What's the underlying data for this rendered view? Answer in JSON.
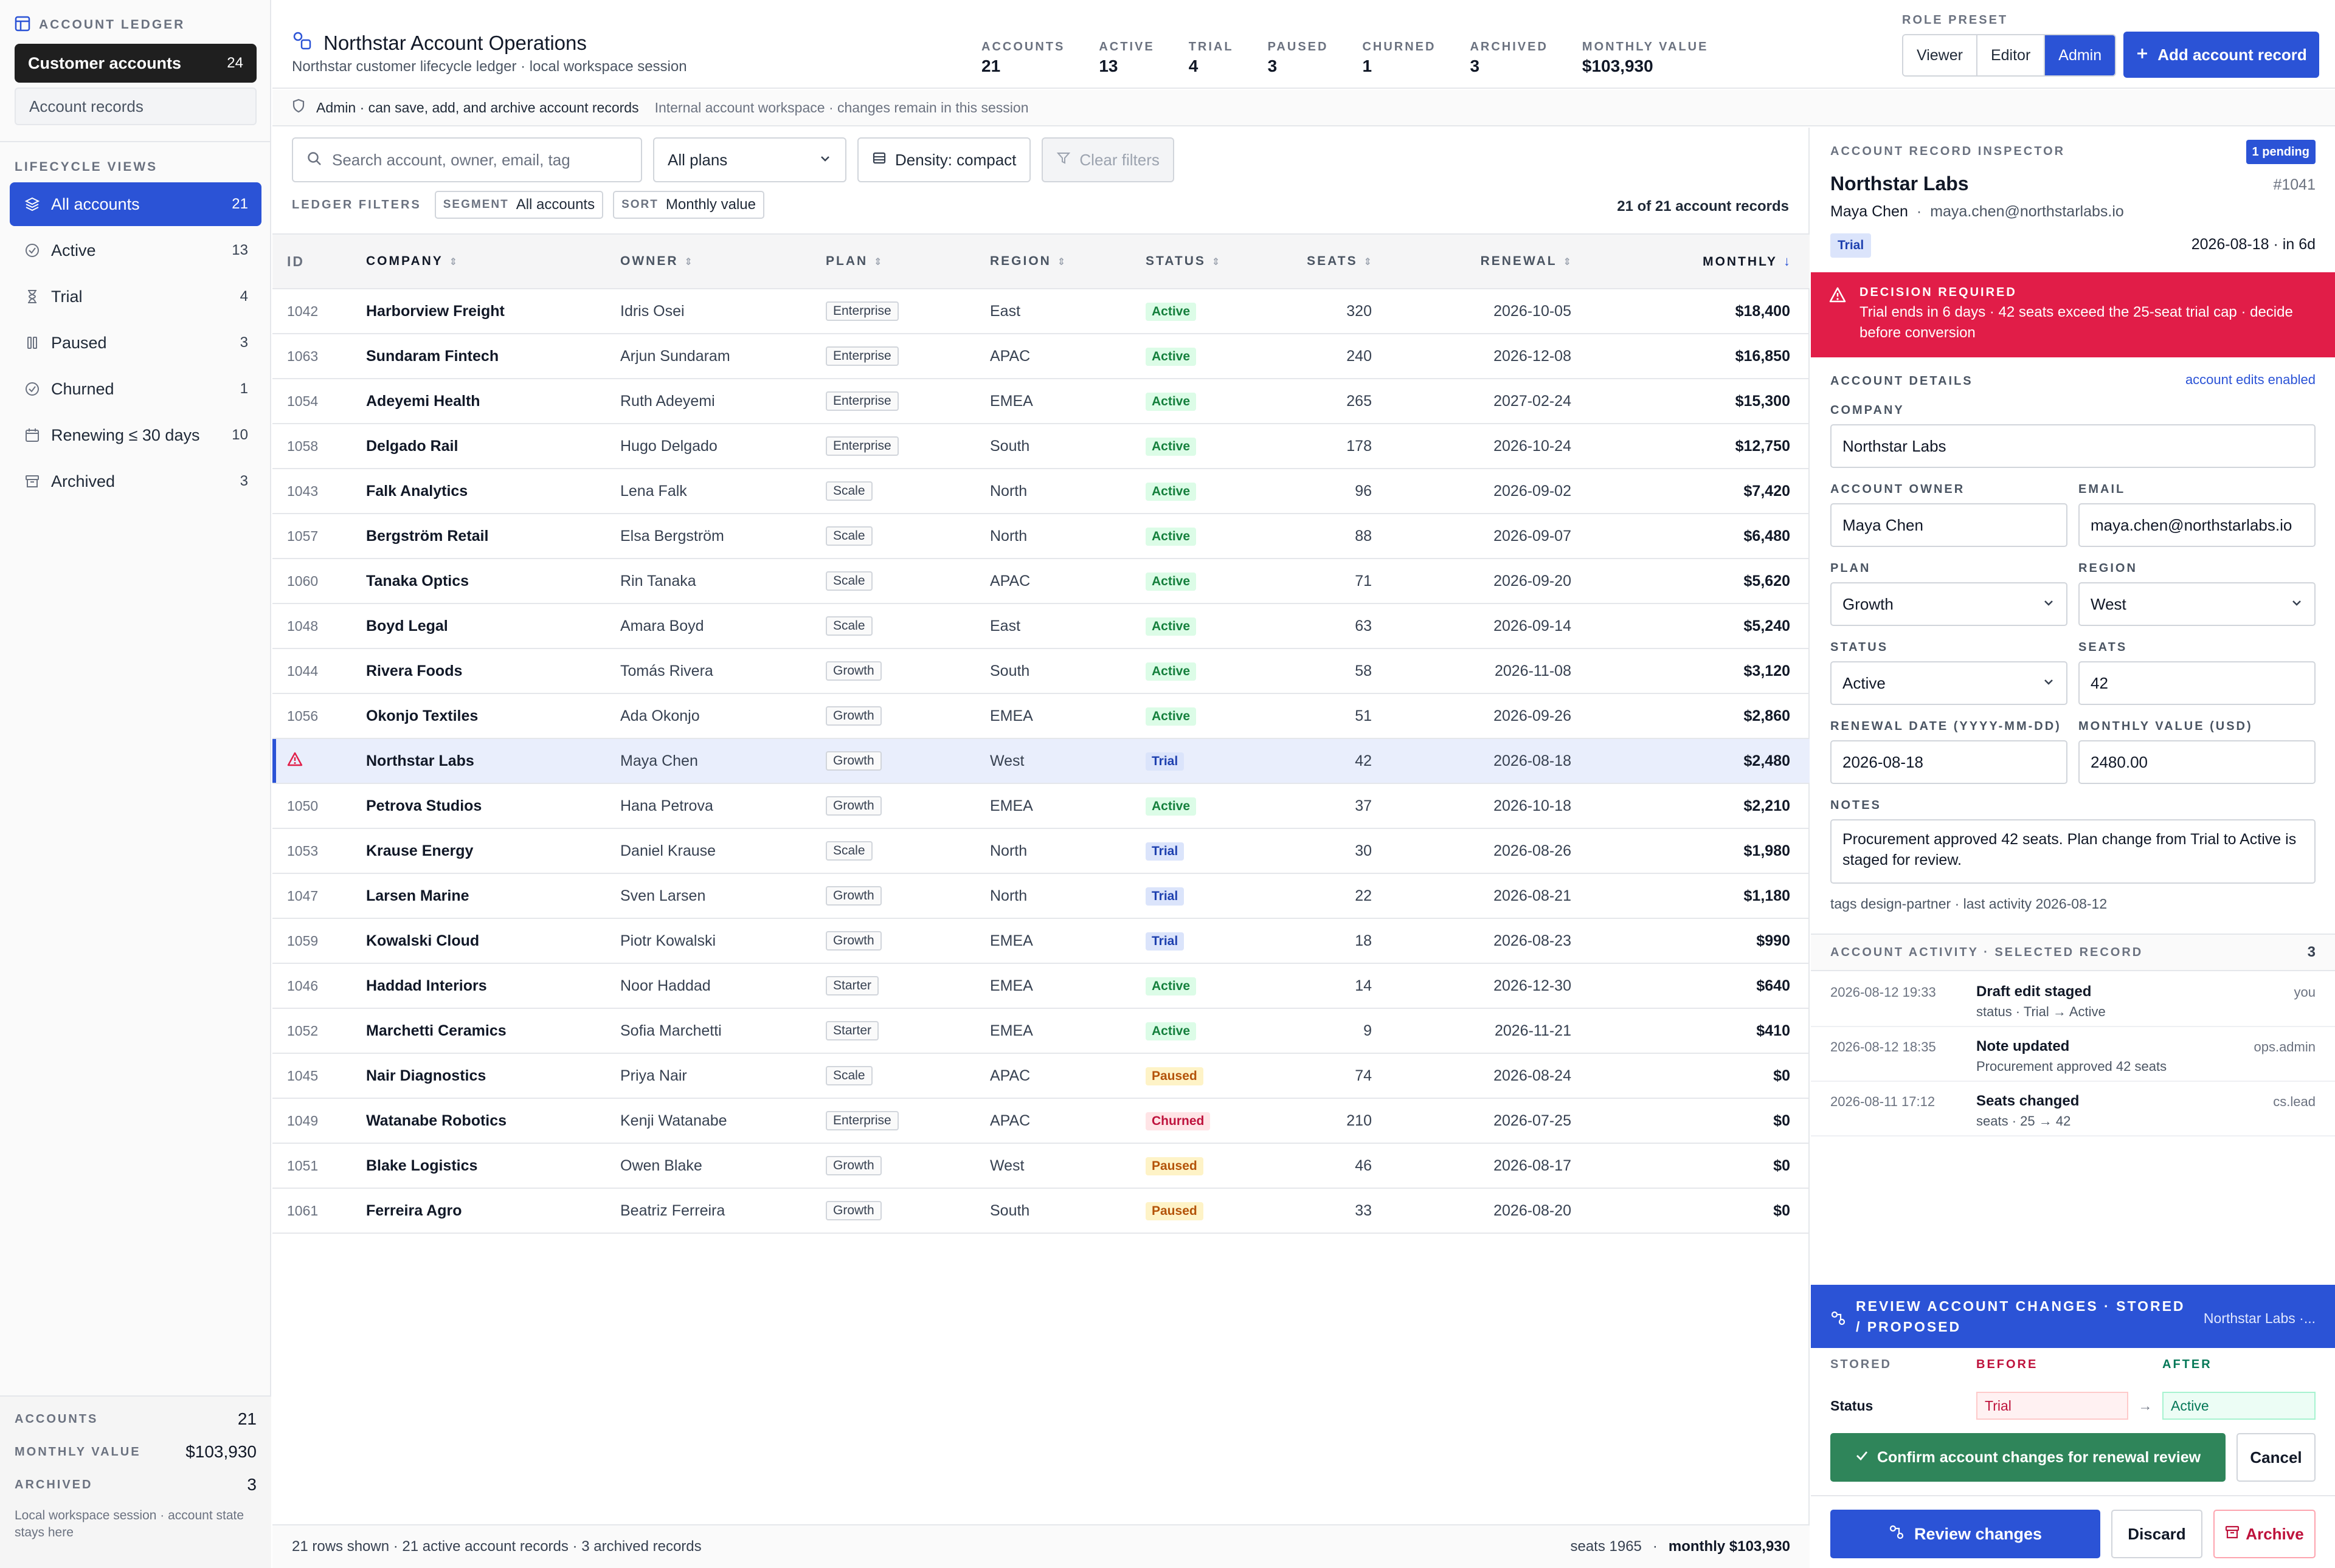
{
  "colors": {
    "accent": "#2b53d6",
    "danger": "#e11d48",
    "success": "#2f855a",
    "sidebar_dark": "#1f1f1f"
  },
  "sidebar": {
    "section_label": "ACCOUNT LEDGER",
    "workspace_label": "Customer accounts",
    "workspace_count": "24",
    "records_label": "Account records",
    "views_label": "LIFECYCLE VIEWS",
    "views": [
      {
        "label": "All accounts",
        "count": "21",
        "icon": "layers-icon"
      },
      {
        "label": "Active",
        "count": "13",
        "icon": "check-circle-icon"
      },
      {
        "label": "Trial",
        "count": "4",
        "icon": "hourglass-icon"
      },
      {
        "label": "Paused",
        "count": "3",
        "icon": "pause-icon"
      },
      {
        "label": "Churned",
        "count": "1",
        "icon": "check-circle-icon"
      },
      {
        "label": "Renewing ≤ 30 days",
        "count": "10",
        "icon": "calendar-icon"
      },
      {
        "label": "Archived",
        "count": "3",
        "icon": "archive-icon"
      }
    ],
    "footer": {
      "accounts_label": "ACCOUNTS",
      "accounts_value": "21",
      "monthly_label": "MONTHLY VALUE",
      "monthly_value": "$103,930",
      "archived_label": "ARCHIVED",
      "archived_value": "3",
      "note": "Local workspace session · account state stays here"
    }
  },
  "header": {
    "title": "Northstar Account Operations",
    "subtitle": "Northstar customer lifecycle ledger · local workspace session",
    "stats": [
      {
        "label": "ACCOUNTS",
        "value": "21"
      },
      {
        "label": "ACTIVE",
        "value": "13"
      },
      {
        "label": "TRIAL",
        "value": "4"
      },
      {
        "label": "PAUSED",
        "value": "3"
      },
      {
        "label": "CHURNED",
        "value": "1"
      },
      {
        "label": "ARCHIVED",
        "value": "3"
      },
      {
        "label": "MONTHLY VALUE",
        "value": "$103,930"
      }
    ],
    "role_label": "ROLE PRESET",
    "roles": [
      "Viewer",
      "Editor",
      "Admin"
    ],
    "active_role": "Admin",
    "add_label": "Add account record"
  },
  "permission": {
    "main": "Admin · can save, add, and archive account records",
    "aside": "Internal account workspace · changes remain in this session"
  },
  "toolbar": {
    "search_placeholder": "Search account, owner, email, tag",
    "plan_select": "All plans",
    "density": "Density: compact",
    "clear": "Clear filters"
  },
  "filters": {
    "label": "LEDGER FILTERS",
    "segment_key": "SEGMENT",
    "segment_value": "All accounts",
    "sort_key": "SORT",
    "sort_value": "Monthly value",
    "row_count": "21 of 21 account records"
  },
  "table": {
    "columns": [
      "ID",
      "COMPANY",
      "OWNER",
      "PLAN",
      "REGION",
      "STATUS",
      "SEATS",
      "RENEWAL",
      "MONTHLY"
    ],
    "rows": [
      {
        "id": "1042",
        "company": "Harborview Freight",
        "owner": "Idris Osei",
        "plan": "Enterprise",
        "region": "East",
        "status": "Active",
        "seats": "320",
        "renewal": "2026-10-05",
        "monthly": "$18,400"
      },
      {
        "id": "1063",
        "company": "Sundaram Fintech",
        "owner": "Arjun Sundaram",
        "plan": "Enterprise",
        "region": "APAC",
        "status": "Active",
        "seats": "240",
        "renewal": "2026-12-08",
        "monthly": "$16,850"
      },
      {
        "id": "1054",
        "company": "Adeyemi Health",
        "owner": "Ruth Adeyemi",
        "plan": "Enterprise",
        "region": "EMEA",
        "status": "Active",
        "seats": "265",
        "renewal": "2027-02-24",
        "monthly": "$15,300"
      },
      {
        "id": "1058",
        "company": "Delgado Rail",
        "owner": "Hugo Delgado",
        "plan": "Enterprise",
        "region": "South",
        "status": "Active",
        "seats": "178",
        "renewal": "2026-10-24",
        "monthly": "$12,750"
      },
      {
        "id": "1043",
        "company": "Falk Analytics",
        "owner": "Lena Falk",
        "plan": "Scale",
        "region": "North",
        "status": "Active",
        "seats": "96",
        "renewal": "2026-09-02",
        "monthly": "$7,420"
      },
      {
        "id": "1057",
        "company": "Bergström Retail",
        "owner": "Elsa Bergström",
        "plan": "Scale",
        "region": "North",
        "status": "Active",
        "seats": "88",
        "renewal": "2026-09-07",
        "monthly": "$6,480"
      },
      {
        "id": "1060",
        "company": "Tanaka Optics",
        "owner": "Rin Tanaka",
        "plan": "Scale",
        "region": "APAC",
        "status": "Active",
        "seats": "71",
        "renewal": "2026-09-20",
        "monthly": "$5,620"
      },
      {
        "id": "1048",
        "company": "Boyd Legal",
        "owner": "Amara Boyd",
        "plan": "Scale",
        "region": "East",
        "status": "Active",
        "seats": "63",
        "renewal": "2026-09-14",
        "monthly": "$5,240"
      },
      {
        "id": "1044",
        "company": "Rivera Foods",
        "owner": "Tomás Rivera",
        "plan": "Growth",
        "region": "South",
        "status": "Active",
        "seats": "58",
        "renewal": "2026-11-08",
        "monthly": "$3,120"
      },
      {
        "id": "1056",
        "company": "Okonjo Textiles",
        "owner": "Ada Okonjo",
        "plan": "Growth",
        "region": "EMEA",
        "status": "Active",
        "seats": "51",
        "renewal": "2026-09-26",
        "monthly": "$2,860"
      },
      {
        "id": "",
        "company": "Northstar Labs",
        "owner": "Maya Chen",
        "plan": "Growth",
        "region": "West",
        "status": "Trial",
        "seats": "42",
        "renewal": "2026-08-18",
        "monthly": "$2,480",
        "selected": true
      },
      {
        "id": "1050",
        "company": "Petrova Studios",
        "owner": "Hana Petrova",
        "plan": "Growth",
        "region": "EMEA",
        "status": "Active",
        "seats": "37",
        "renewal": "2026-10-18",
        "monthly": "$2,210"
      },
      {
        "id": "1053",
        "company": "Krause Energy",
        "owner": "Daniel Krause",
        "plan": "Scale",
        "region": "North",
        "status": "Trial",
        "seats": "30",
        "renewal": "2026-08-26",
        "monthly": "$1,980"
      },
      {
        "id": "1047",
        "company": "Larsen Marine",
        "owner": "Sven Larsen",
        "plan": "Growth",
        "region": "North",
        "status": "Trial",
        "seats": "22",
        "renewal": "2026-08-21",
        "monthly": "$1,180"
      },
      {
        "id": "1059",
        "company": "Kowalski Cloud",
        "owner": "Piotr Kowalski",
        "plan": "Growth",
        "region": "EMEA",
        "status": "Trial",
        "seats": "18",
        "renewal": "2026-08-23",
        "monthly": "$990"
      },
      {
        "id": "1046",
        "company": "Haddad Interiors",
        "owner": "Noor Haddad",
        "plan": "Starter",
        "region": "EMEA",
        "status": "Active",
        "seats": "14",
        "renewal": "2026-12-30",
        "monthly": "$640"
      },
      {
        "id": "1052",
        "company": "Marchetti Ceramics",
        "owner": "Sofia Marchetti",
        "plan": "Starter",
        "region": "EMEA",
        "status": "Active",
        "seats": "9",
        "renewal": "2026-11-21",
        "monthly": "$410"
      },
      {
        "id": "1045",
        "company": "Nair Diagnostics",
        "owner": "Priya Nair",
        "plan": "Scale",
        "region": "APAC",
        "status": "Paused",
        "seats": "74",
        "renewal": "2026-08-24",
        "monthly": "$0"
      },
      {
        "id": "1049",
        "company": "Watanabe Robotics",
        "owner": "Kenji Watanabe",
        "plan": "Enterprise",
        "region": "APAC",
        "status": "Churned",
        "seats": "210",
        "renewal": "2026-07-25",
        "monthly": "$0"
      },
      {
        "id": "1051",
        "company": "Blake Logistics",
        "owner": "Owen Blake",
        "plan": "Growth",
        "region": "West",
        "status": "Paused",
        "seats": "46",
        "renewal": "2026-08-17",
        "monthly": "$0"
      },
      {
        "id": "1061",
        "company": "Ferreira Agro",
        "owner": "Beatriz Ferreira",
        "plan": "Growth",
        "region": "South",
        "status": "Paused",
        "seats": "33",
        "renewal": "2026-08-20",
        "monthly": "$0"
      }
    ],
    "status_colors": {
      "Active": {
        "bg": "#dcfce7",
        "fg": "#15803d"
      },
      "Trial": {
        "bg": "#dbe4fb",
        "fg": "#1e40af"
      },
      "Paused": {
        "bg": "#fef3c7",
        "fg": "#b45309"
      },
      "Churned": {
        "bg": "#ffe4e6",
        "fg": "#be123c"
      }
    },
    "footer_left": "21 rows shown · 21 active account records · 3 archived records",
    "footer_seats": "seats 1965",
    "footer_sep": "·",
    "footer_monthly": "monthly $103,930"
  },
  "inspector": {
    "label": "ACCOUNT RECORD INSPECTOR",
    "pending": "1 pending",
    "name": "Northstar Labs",
    "record_id": "#1041",
    "owner": "Maya Chen",
    "sep": "·",
    "email": "maya.chen@northstarlabs.io",
    "status_tag": "Trial",
    "renewal_line": "2026-08-18 · in 6d",
    "alert_title": "DECISION REQUIRED",
    "alert_text": "Trial ends in 6 days · 42 seats exceed the 25-seat trial cap · decide before conversion",
    "details_label": "ACCOUNT DETAILS",
    "edits_enabled": "account edits enabled",
    "company_label": "COMPANY",
    "company": "Northstar Labs",
    "owner_label": "ACCOUNT OWNER",
    "owner_value": "Maya Chen",
    "email_label": "EMAIL",
    "email_value": "maya.chen@northstarlabs.io",
    "plan_label": "PLAN",
    "plan_value": "Growth",
    "region_label": "REGION",
    "region_value": "West",
    "status_label": "STATUS",
    "status_value": "Active",
    "seats_label": "SEATS",
    "seats_value": "42",
    "renewal_label": "RENEWAL DATE (YYYY-MM-DD)",
    "renewal_value": "2026-08-18",
    "monthly_label": "MONTHLY VALUE (USD)",
    "monthly_value": "2480.00",
    "notes_label": "NOTES",
    "notes": "Procurement approved 42 seats. Plan change from Trial to Active is staged for review.",
    "tags_line": "tags design-partner  ·  last activity 2026-08-12",
    "activity_label": "ACCOUNT ACTIVITY · SELECTED RECORD",
    "activity_count": "3",
    "activity": [
      {
        "ts": "2026-08-12 19:33",
        "title": "Draft edit staged",
        "desc": "status · Trial → Active",
        "by": "you"
      },
      {
        "ts": "2026-08-12 18:35",
        "title": "Note updated",
        "desc": "Procurement approved 42 seats",
        "by": "ops.admin"
      },
      {
        "ts": "2026-08-11 17:12",
        "title": "Seats changed",
        "desc": "seats · 25 → 42",
        "by": "cs.lead"
      }
    ],
    "review_title": "REVIEW ACCOUNT CHANGES · STORED / PROPOSED",
    "review_which": "Northstar Labs ·...",
    "col_stored": "STORED",
    "col_before": "BEFORE",
    "col_after": "AFTER",
    "diff_key": "Status",
    "diff_before": "Trial",
    "diff_arrow": "→",
    "diff_after": "Active",
    "confirm": "Confirm account changes for renewal review",
    "cancel": "Cancel",
    "review_btn": "Review changes",
    "discard": "Discard",
    "archive": "Archive"
  }
}
